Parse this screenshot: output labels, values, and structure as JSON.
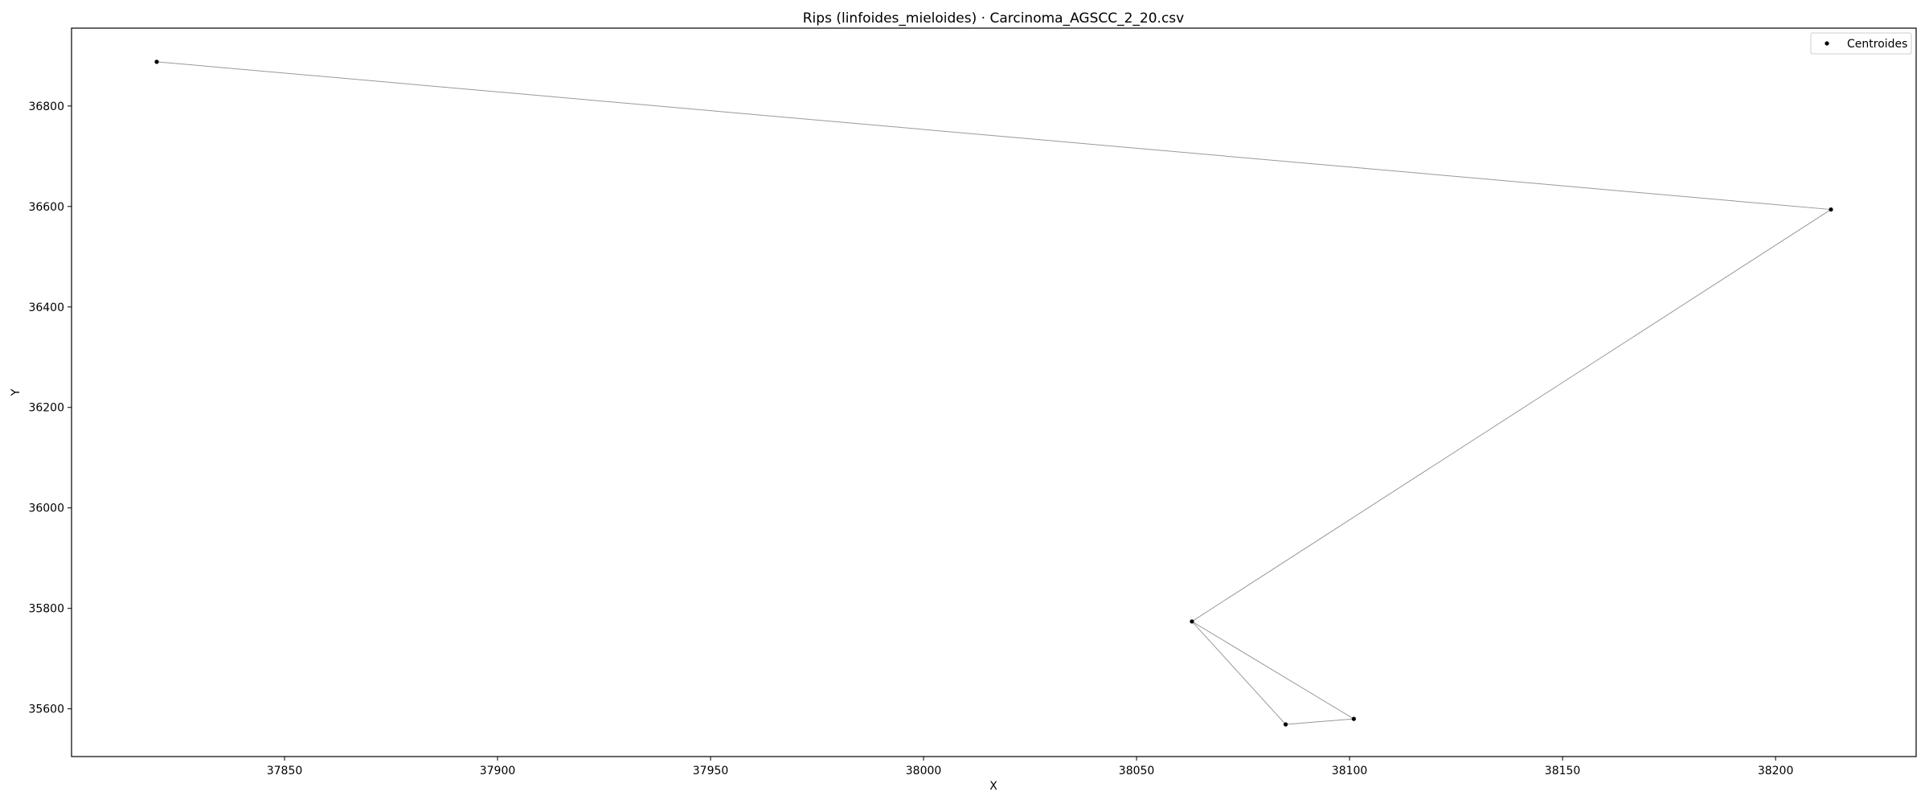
{
  "chart_data": {
    "type": "scatter",
    "title": "Rips (linfoides_mieloides) · Carcinoma_AGSCC_2_20.csv",
    "xlabel": "X",
    "ylabel": "Y",
    "xlim": [
      37800,
      38233
    ],
    "ylim": [
      35505,
      36955
    ],
    "xticks": [
      37850,
      37900,
      37950,
      38000,
      38050,
      38100,
      38150,
      38200
    ],
    "yticks": [
      35600,
      35800,
      36000,
      36200,
      36400,
      36600,
      36800
    ],
    "grid": false,
    "legend": {
      "position": "top-right",
      "entries": [
        "Centroides"
      ]
    },
    "series": [
      {
        "name": "Centroides",
        "color": "#000000",
        "points": [
          {
            "x": 37820,
            "y": 36888
          },
          {
            "x": 38213,
            "y": 36594
          },
          {
            "x": 38063,
            "y": 35774
          },
          {
            "x": 38101,
            "y": 35580
          },
          {
            "x": 38085,
            "y": 35569
          }
        ]
      }
    ],
    "edges": [
      {
        "from": 0,
        "to": 1
      },
      {
        "from": 1,
        "to": 2
      },
      {
        "from": 2,
        "to": 3
      },
      {
        "from": 2,
        "to": 4
      },
      {
        "from": 3,
        "to": 4
      }
    ],
    "edge_color": "#999999"
  }
}
